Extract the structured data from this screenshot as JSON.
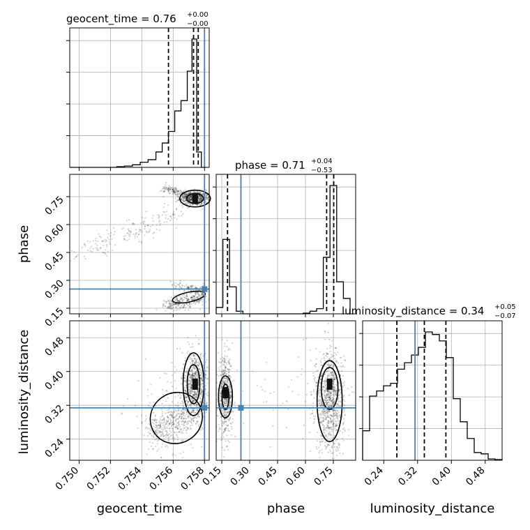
{
  "chart_data": {
    "type": "corner",
    "parameters": [
      "geocent_time",
      "phase",
      "luminosity_distance"
    ],
    "truths": {
      "geocent_time": 0.758,
      "phase": 0.253,
      "luminosity_distance": 0.314
    },
    "titles": [
      {
        "param": "geocent_time",
        "text": "geocent_time = 0.76",
        "plus": "+0.00",
        "minus": "−0.00"
      },
      {
        "param": "phase",
        "text": "phase = 0.71",
        "plus": "+0.04",
        "minus": "−0.53"
      },
      {
        "param": "luminosity_distance",
        "text": "luminosity_distance = 0.34",
        "plus": "+0.05",
        "minus": "−0.07"
      }
    ],
    "axes": {
      "geocent_time": {
        "range": [
          0.7494,
          0.7583
        ],
        "ticks": [
          "0.750",
          "0.752",
          "0.754",
          "0.756",
          "0.758"
        ],
        "tick_values": [
          0.75,
          0.752,
          0.754,
          0.756,
          0.758
        ]
      },
      "phase": {
        "range": [
          0.12,
          0.87
        ],
        "ticks": [
          "0.15",
          "0.30",
          "0.45",
          "0.60",
          "0.75"
        ],
        "tick_values": [
          0.15,
          0.3,
          0.45,
          0.6,
          0.75
        ]
      },
      "luminosity_distance": {
        "range": [
          0.19,
          0.52
        ],
        "ticks": [
          "0.24",
          "0.32",
          "0.40",
          "0.48"
        ],
        "tick_values": [
          0.24,
          0.32,
          0.4,
          0.48
        ]
      }
    },
    "axis_labels": {
      "geocent_time": "geocent_time",
      "phase": "phase",
      "luminosity_distance": "luminosity_distance"
    },
    "histograms": {
      "geocent_time": {
        "edges": [
          0.7494,
          0.7499,
          0.7504,
          0.7509,
          0.7514,
          0.7519,
          0.7524,
          0.7529,
          0.7534,
          0.7539,
          0.7544,
          0.7549,
          0.7553,
          0.7557,
          0.7561,
          0.7565,
          0.7569,
          0.7572,
          0.7575,
          0.7578,
          0.7581
        ],
        "values": [
          0.0,
          0.0,
          0.0,
          0.0,
          0.0,
          0.0,
          0.005,
          0.01,
          0.02,
          0.04,
          0.06,
          0.12,
          0.19,
          0.28,
          0.44,
          0.52,
          0.75,
          1.0,
          0.12,
          0.0
        ],
        "quantiles": [
          0.7557,
          0.7573,
          0.7576
        ]
      },
      "phase": {
        "edges": [
          0.12,
          0.156,
          0.192,
          0.228,
          0.264,
          0.3,
          0.336,
          0.372,
          0.408,
          0.444,
          0.48,
          0.516,
          0.552,
          0.588,
          0.624,
          0.66,
          0.696,
          0.732,
          0.768,
          0.804,
          0.84
        ],
        "values": [
          0.05,
          0.58,
          0.21,
          0.02,
          0.0,
          0.0,
          0.0,
          0.0,
          0.0,
          0.0,
          0.0,
          0.0,
          0.0,
          0.005,
          0.02,
          0.04,
          0.44,
          1.0,
          0.25,
          0.12
        ],
        "quantiles": [
          0.181,
          0.714,
          0.752
        ]
      },
      "luminosity_distance": {
        "edges": [
          0.19,
          0.2065,
          0.223,
          0.2395,
          0.256,
          0.2725,
          0.289,
          0.3055,
          0.322,
          0.3385,
          0.355,
          0.3715,
          0.388,
          0.4045,
          0.421,
          0.4375,
          0.454,
          0.4705,
          0.487,
          0.5035,
          0.52
        ],
        "values": [
          0.23,
          0.5,
          0.54,
          0.58,
          0.6,
          0.71,
          0.76,
          0.82,
          0.88,
          1.0,
          0.98,
          0.93,
          0.8,
          0.48,
          0.3,
          0.17,
          0.06,
          0.05,
          0.01,
          0.005
        ],
        "quantiles": [
          0.271,
          0.336,
          0.387
        ]
      }
    },
    "grid": true,
    "colors": {
      "truth": "#4682b4",
      "hist": "#000000",
      "grid": "#b0b0b0",
      "quantile": "#000000"
    }
  }
}
